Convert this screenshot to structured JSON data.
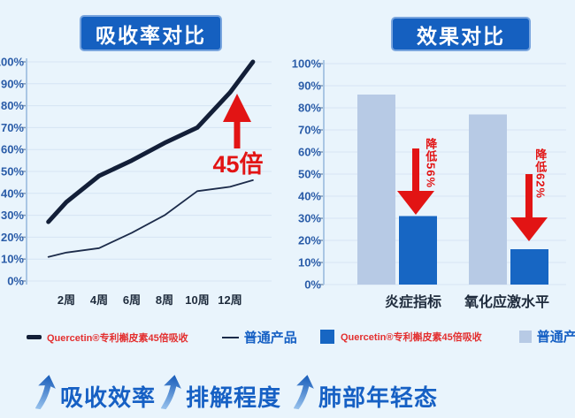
{
  "colors": {
    "background": "#E9F4FC",
    "banner_blue": "#1560C0",
    "axis_label_blue": "#2A5CA8",
    "tick_label_dark": "#1E2B3C",
    "gridline": "#D6E4F3",
    "axis_line": "#A9C6E4",
    "red": "#E21414",
    "legend_red": "#E32F2F",
    "legend_blue": "#1660C4",
    "footer_blue": "#1660C4"
  },
  "chart_data": [
    {
      "type": "line",
      "title": "吸收率对比",
      "x_tick_labels": [
        "2周",
        "4周",
        "6周",
        "8周",
        "10周",
        "12周"
      ],
      "x_tick_weeks": [
        2,
        4,
        6,
        8,
        10,
        12
      ],
      "ylim": [
        0,
        100
      ],
      "y_tick_step": 10,
      "y_tick_suffix": "%",
      "grid": true,
      "legend_position": "bottom",
      "series": [
        {
          "name": "Quercetin®专利槲皮素45倍吸收",
          "color": "#131F38",
          "width": 5,
          "x": [
            0.9,
            2,
            4,
            6,
            8,
            10,
            12,
            13.4
          ],
          "values": [
            27,
            36,
            48,
            55,
            63,
            70,
            86,
            100
          ]
        },
        {
          "name": "普通产品",
          "color": "#1C2B4A",
          "width": 1.8,
          "x": [
            0.9,
            2,
            4,
            6,
            8,
            10,
            12,
            13.4
          ],
          "values": [
            11,
            13,
            15,
            22,
            30,
            41,
            43,
            46
          ]
        }
      ],
      "annotation": {
        "text": "45倍",
        "color": "#E21414",
        "arrow": "up"
      }
    },
    {
      "type": "bar",
      "title": "效果对比",
      "categories": [
        "炎症指标",
        "氧化应激水平"
      ],
      "ylim": [
        0,
        100
      ],
      "y_tick_step": 10,
      "y_tick_suffix": "%",
      "grid": true,
      "legend_position": "bottom",
      "series": [
        {
          "name": "普通产品",
          "color": "#B7CAE5",
          "values": [
            86,
            77
          ]
        },
        {
          "name": "Quercetin®专利槲皮素45倍吸收",
          "color": "#1766C3",
          "values": [
            31,
            16
          ]
        }
      ],
      "annotations": [
        {
          "text": "降低56%",
          "color": "#E21414",
          "arrow": "down"
        },
        {
          "text": "降低62%",
          "color": "#E21414",
          "arrow": "down"
        }
      ]
    }
  ],
  "footer": {
    "items": [
      {
        "label": "吸收效率"
      },
      {
        "label": "排解程度"
      },
      {
        "label": "肺部年轻态"
      }
    ]
  }
}
